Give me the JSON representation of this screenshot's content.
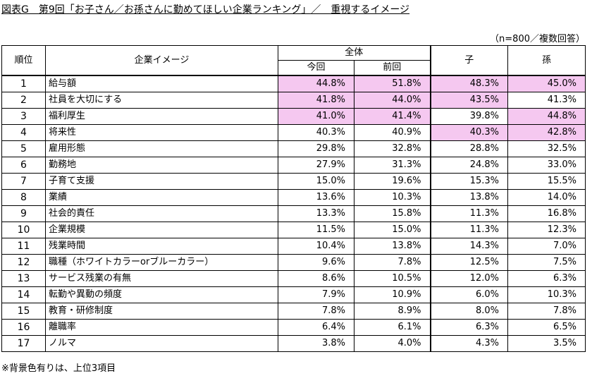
{
  "title": "図表G　第9回「お子さん／お孫さんに勤めてほしい企業ランキング」／　重視するイメージ",
  "sample_note": "（n=800／複数回答）",
  "footnote": "※背景色有りは、上位3項目",
  "highlight_color": "#f5c8f0",
  "headers": {
    "rank": "順位",
    "image": "企業イメージ",
    "overall": "全体",
    "current": "今回",
    "previous": "前回",
    "child": "子",
    "grandchild": "孫"
  },
  "rows": [
    {
      "rank": "1",
      "name": "給与額",
      "current": "44.8%",
      "previous": "51.8%",
      "child": "48.3%",
      "grandchild": "45.0%",
      "hl": [
        true,
        true,
        true,
        true
      ]
    },
    {
      "rank": "2",
      "name": "社員を大切にする",
      "current": "41.8%",
      "previous": "44.0%",
      "child": "43.5%",
      "grandchild": "41.3%",
      "hl": [
        true,
        true,
        true,
        false
      ]
    },
    {
      "rank": "3",
      "name": "福利厚生",
      "current": "41.0%",
      "previous": "41.4%",
      "child": "39.8%",
      "grandchild": "44.8%",
      "hl": [
        true,
        true,
        false,
        true
      ]
    },
    {
      "rank": "4",
      "name": "将来性",
      "current": "40.3%",
      "previous": "40.9%",
      "child": "40.3%",
      "grandchild": "42.8%",
      "hl": [
        false,
        false,
        true,
        true
      ]
    },
    {
      "rank": "5",
      "name": "雇用形態",
      "current": "29.8%",
      "previous": "32.8%",
      "child": "28.8%",
      "grandchild": "32.5%",
      "hl": [
        false,
        false,
        false,
        false
      ]
    },
    {
      "rank": "6",
      "name": "勤務地",
      "current": "27.9%",
      "previous": "31.3%",
      "child": "24.8%",
      "grandchild": "33.0%",
      "hl": [
        false,
        false,
        false,
        false
      ]
    },
    {
      "rank": "7",
      "name": "子育て支援",
      "current": "15.0%",
      "previous": "19.6%",
      "child": "15.3%",
      "grandchild": "15.5%",
      "hl": [
        false,
        false,
        false,
        false
      ]
    },
    {
      "rank": "8",
      "name": "業績",
      "current": "13.6%",
      "previous": "10.3%",
      "child": "13.8%",
      "grandchild": "14.0%",
      "hl": [
        false,
        false,
        false,
        false
      ]
    },
    {
      "rank": "9",
      "name": "社会的責任",
      "current": "13.3%",
      "previous": "15.8%",
      "child": "11.3%",
      "grandchild": "16.8%",
      "hl": [
        false,
        false,
        false,
        false
      ]
    },
    {
      "rank": "10",
      "name": "企業規模",
      "current": "11.5%",
      "previous": "15.0%",
      "child": "11.3%",
      "grandchild": "12.3%",
      "hl": [
        false,
        false,
        false,
        false
      ]
    },
    {
      "rank": "11",
      "name": "残業時間",
      "current": "10.4%",
      "previous": "13.8%",
      "child": "14.3%",
      "grandchild": "7.0%",
      "hl": [
        false,
        false,
        false,
        false
      ]
    },
    {
      "rank": "12",
      "name": "職種（ホワイトカラーorブルーカラー）",
      "current": "9.6%",
      "previous": "7.8%",
      "child": "12.5%",
      "grandchild": "7.5%",
      "hl": [
        false,
        false,
        false,
        false
      ]
    },
    {
      "rank": "13",
      "name": "サービス残業の有無",
      "current": "8.6%",
      "previous": "10.5%",
      "child": "12.0%",
      "grandchild": "6.3%",
      "hl": [
        false,
        false,
        false,
        false
      ]
    },
    {
      "rank": "14",
      "name": "転勤や異動の頻度",
      "current": "7.9%",
      "previous": "10.9%",
      "child": "6.0%",
      "grandchild": "10.3%",
      "hl": [
        false,
        false,
        false,
        false
      ]
    },
    {
      "rank": "15",
      "name": "教育・研修制度",
      "current": "7.8%",
      "previous": "8.9%",
      "child": "8.0%",
      "grandchild": "7.8%",
      "hl": [
        false,
        false,
        false,
        false
      ]
    },
    {
      "rank": "16",
      "name": "離職率",
      "current": "6.4%",
      "previous": "6.1%",
      "child": "6.3%",
      "grandchild": "6.5%",
      "hl": [
        false,
        false,
        false,
        false
      ]
    },
    {
      "rank": "17",
      "name": "ノルマ",
      "current": "3.8%",
      "previous": "4.0%",
      "child": "4.3%",
      "grandchild": "3.5%",
      "hl": [
        false,
        false,
        false,
        false
      ]
    }
  ]
}
